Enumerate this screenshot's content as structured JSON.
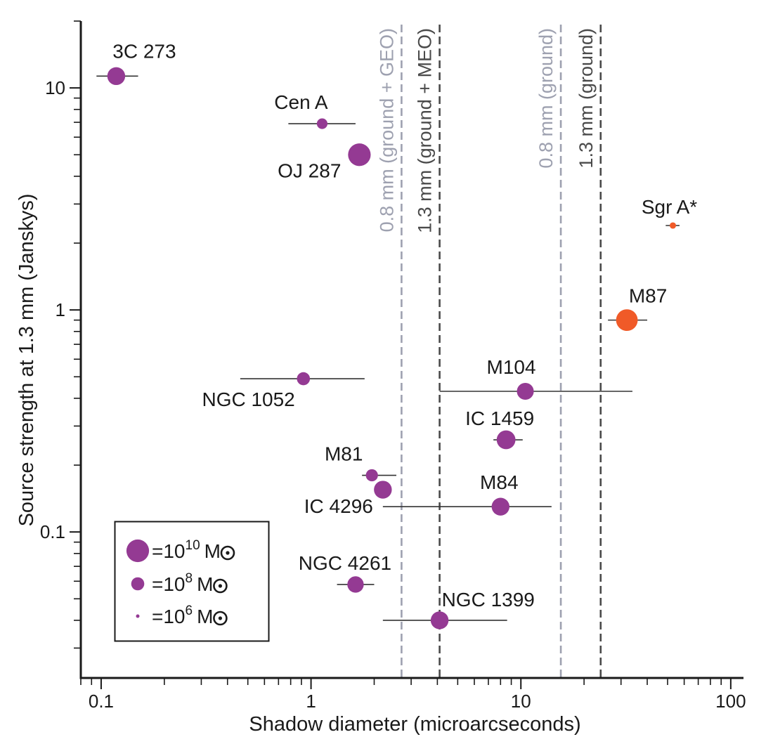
{
  "chart_data": {
    "type": "scatter",
    "xlabel": "Shadow diameter (microarcseconds)",
    "ylabel": "Source strength at 1.3 mm (Janskys)",
    "x_scale": "log",
    "y_scale": "log",
    "xlim": [
      0.08,
      115
    ],
    "ylim": [
      0.022,
      20
    ],
    "x_ticks": [
      {
        "value": 0.1,
        "label": "0.1"
      },
      {
        "value": 1,
        "label": "1"
      },
      {
        "value": 10,
        "label": "10"
      },
      {
        "value": 100,
        "label": "100"
      }
    ],
    "y_ticks": [
      {
        "value": 0.1,
        "label": "0.1"
      },
      {
        "value": 1,
        "label": "1"
      },
      {
        "value": 10,
        "label": "10"
      }
    ],
    "grid": false,
    "colors": {
      "default": "#943a93",
      "highlight": "#f05a28",
      "axis": "#1a1a1a",
      "errorbar": "#333333"
    },
    "reference_lines": [
      {
        "x": 2.7,
        "label": "0.8 mm (ground + GEO)",
        "color": "#9ea1b0"
      },
      {
        "x": 4.1,
        "label": "1.3 mm (ground + MEO)",
        "color": "#4a4a4a"
      },
      {
        "x": 15.5,
        "label": "0.8 mm (ground)",
        "color": "#9ea1b0"
      },
      {
        "x": 24,
        "label": "1.3 mm (ground)",
        "color": "#4a4a4a"
      }
    ],
    "points": [
      {
        "name": "3C 273",
        "x": 0.118,
        "y": 11.3,
        "xerr": [
          0.095,
          0.15
        ],
        "log_mass": 9.0,
        "color": "default"
      },
      {
        "name": "Cen A",
        "x": 1.13,
        "y": 6.9,
        "xerr": [
          0.78,
          1.63
        ],
        "log_mass": 7.5,
        "color": "default"
      },
      {
        "name": "OJ 287",
        "x": 1.7,
        "y": 5.0,
        "xerr": [
          1.55,
          1.72
        ],
        "log_mass": 10.0,
        "color": "default"
      },
      {
        "name": "Sgr A*",
        "x": 53,
        "y": 2.4,
        "xerr": [
          49,
          57
        ],
        "log_mass": 6.6,
        "color": "highlight"
      },
      {
        "name": "M87",
        "x": 32,
        "y": 0.9,
        "xerr": [
          26,
          40
        ],
        "log_mass": 9.8,
        "color": "highlight"
      },
      {
        "name": "NGC 1052",
        "x": 0.92,
        "y": 0.49,
        "xerr": [
          0.46,
          1.8
        ],
        "log_mass": 8.0,
        "color": "default"
      },
      {
        "name": "M104",
        "x": 10.5,
        "y": 0.43,
        "xerr": [
          4.1,
          34
        ],
        "log_mass": 8.8,
        "color": "default"
      },
      {
        "name": "IC 1459",
        "x": 8.5,
        "y": 0.26,
        "xerr": [
          7.4,
          10.2
        ],
        "log_mass": 9.2,
        "color": "default"
      },
      {
        "name": "M81",
        "x": 1.95,
        "y": 0.18,
        "xerr": [
          1.75,
          2.55
        ],
        "log_mass": 7.8,
        "color": "default"
      },
      {
        "name": "IC 4296",
        "x": 2.2,
        "y": 0.155,
        "xerr": [
          2.05,
          2.4
        ],
        "log_mass": 9.0,
        "color": "default"
      },
      {
        "name": "M84",
        "x": 8.0,
        "y": 0.13,
        "xerr": [
          2.2,
          14
        ],
        "log_mass": 9.0,
        "color": "default"
      },
      {
        "name": "NGC 4261",
        "x": 1.63,
        "y": 0.058,
        "xerr": [
          1.33,
          2.0
        ],
        "log_mass": 8.7,
        "color": "default"
      },
      {
        "name": "NGC 1399",
        "x": 4.1,
        "y": 0.04,
        "xerr": [
          2.2,
          8.6
        ],
        "log_mass": 9.0,
        "color": "default"
      }
    ],
    "legend": {
      "placement": "bottom-left",
      "entries": [
        {
          "log_mass": 10,
          "text": "=10",
          "exp": "10",
          "unit": "M"
        },
        {
          "log_mass": 8,
          "text": "=10",
          "exp": "8",
          "unit": "M"
        },
        {
          "log_mass": 6,
          "text": "=10",
          "exp": "6",
          "unit": "M"
        }
      ]
    }
  }
}
